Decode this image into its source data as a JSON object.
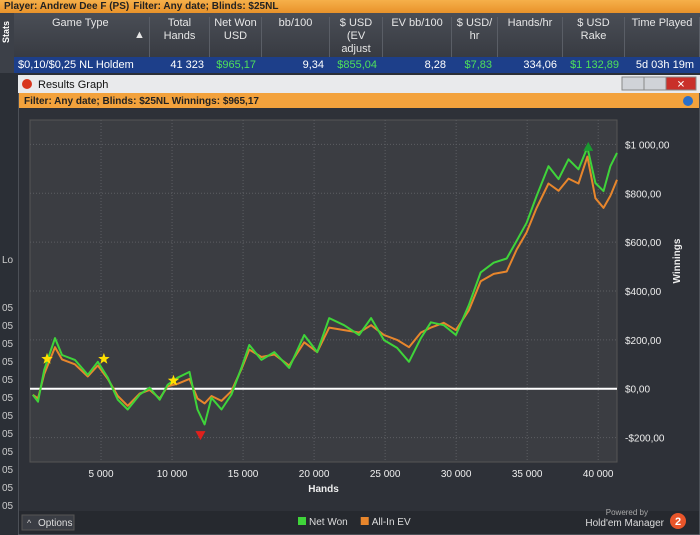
{
  "player_bar": {
    "player": "Player: Andrew Dee F (PS)",
    "filter": "Filter: Any date; Blinds: $25NL"
  },
  "side_tab": "Stats",
  "table": {
    "columns": [
      "Game Type",
      "Total Hands",
      "Net Won USD",
      "bb/100",
      "$ USD (EV adjust",
      "EV bb/100",
      "$ USD/ hr",
      "Hands/hr",
      "$ USD Rake",
      "Time Played"
    ],
    "rows": [
      [
        "$0,10/$0,25 NL Holdem",
        "41 323",
        "$965,17",
        "9,34",
        "$855,04",
        "8,28",
        "$7,83",
        "334,06",
        "$1 132,89",
        "5d 03h 19m"
      ]
    ]
  },
  "left_fragments": [
    "Lo",
    "05",
    "05",
    "05",
    "05",
    "05",
    "05",
    "05",
    "05",
    "05",
    "05",
    "05",
    "05"
  ],
  "window": {
    "title": "Results Graph",
    "filter": "Filter: Any date; Blinds: $25NL Winnings: $965,17",
    "options": "Options",
    "powered_by": "Powered by",
    "brand": "Hold'em Manager"
  },
  "chart_data": {
    "type": "line",
    "x_label": "Hands",
    "y_label": "Winnings",
    "x": [
      200,
      560,
      1000,
      1760,
      2250,
      3160,
      4070,
      4770,
      5480,
      6180,
      6880,
      7720,
      8420,
      9130,
      9690,
      10390,
      11230,
      11790,
      12290,
      12780,
      13480,
      14180,
      14880,
      15440,
      16290,
      17200,
      18250,
      19300,
      20220,
      21060,
      22110,
      23170,
      24010,
      24920,
      25840,
      26680,
      27520,
      28220,
      29130,
      29980,
      30890,
      31730,
      32640,
      33560,
      34260,
      34960,
      35660,
      36500,
      37210,
      37910,
      38610,
      39240,
      39800,
      40370,
      40860,
      41323
    ],
    "series": [
      {
        "name": "All-In EV",
        "color": "#e8862c",
        "values": [
          -25,
          -40,
          60,
          170,
          120,
          100,
          50,
          95,
          40,
          -30,
          -70,
          -20,
          -5,
          -40,
          10,
          20,
          40,
          -40,
          -60,
          -30,
          -50,
          -10,
          80,
          160,
          130,
          140,
          95,
          190,
          150,
          250,
          240,
          230,
          260,
          220,
          200,
          170,
          230,
          250,
          270,
          240,
          320,
          440,
          470,
          480,
          570,
          640,
          740,
          840,
          810,
          860,
          840,
          950,
          780,
          740,
          790,
          855.04
        ]
      },
      {
        "name": "Net Won",
        "color": "#3fd43a",
        "values": [
          -25,
          -53,
          77,
          207,
          138,
          118,
          57,
          110,
          45,
          -45,
          -85,
          -24,
          4,
          -45,
          16,
          45,
          69,
          -85,
          -146,
          -37,
          -85,
          -24,
          85,
          179,
          118,
          150,
          85,
          220,
          150,
          289,
          260,
          220,
          289,
          199,
          167,
          110,
          207,
          272,
          260,
          220,
          342,
          476,
          516,
          533,
          606,
          679,
          789,
          911,
          858,
          939,
          898,
          988,
          842,
          809,
          911,
          965.17
        ]
      }
    ],
    "markers": [
      {
        "x": 1200,
        "y": 122,
        "shape": "star",
        "color": "#ffe000"
      },
      {
        "x": 5200,
        "y": 122,
        "shape": "star",
        "color": "#ffe000"
      },
      {
        "x": 10100,
        "y": 33,
        "shape": "star",
        "color": "#ffe000"
      },
      {
        "x": 12000,
        "y": -190,
        "shape": "down-triangle",
        "color": "#e0201c"
      },
      {
        "x": 39300,
        "y": 990,
        "shape": "up-triangle",
        "color": "#1a9a30"
      }
    ],
    "xlim": [
      0,
      41323
    ],
    "ylim": [
      -300,
      1100
    ],
    "xticks": [
      {
        "value": 5000,
        "label": "5 000"
      },
      {
        "value": 10000,
        "label": "10 000"
      },
      {
        "value": 15000,
        "label": "15 000"
      },
      {
        "value": 20000,
        "label": "20 000"
      },
      {
        "value": 25000,
        "label": "25 000"
      },
      {
        "value": 30000,
        "label": "30 000"
      },
      {
        "value": 35000,
        "label": "35 000"
      },
      {
        "value": 40000,
        "label": "40 000"
      }
    ],
    "yticks": [
      {
        "value": -200,
        "label": "-$200,00"
      },
      {
        "value": 0,
        "label": "$0,00"
      },
      {
        "value": 200,
        "label": "$200,00"
      },
      {
        "value": 400,
        "label": "$400,00"
      },
      {
        "value": 600,
        "label": "$600,00"
      },
      {
        "value": 800,
        "label": "$800,00"
      },
      {
        "value": 1000,
        "label": "$1 000,00"
      }
    ],
    "grid": true,
    "legend": "bottom"
  }
}
